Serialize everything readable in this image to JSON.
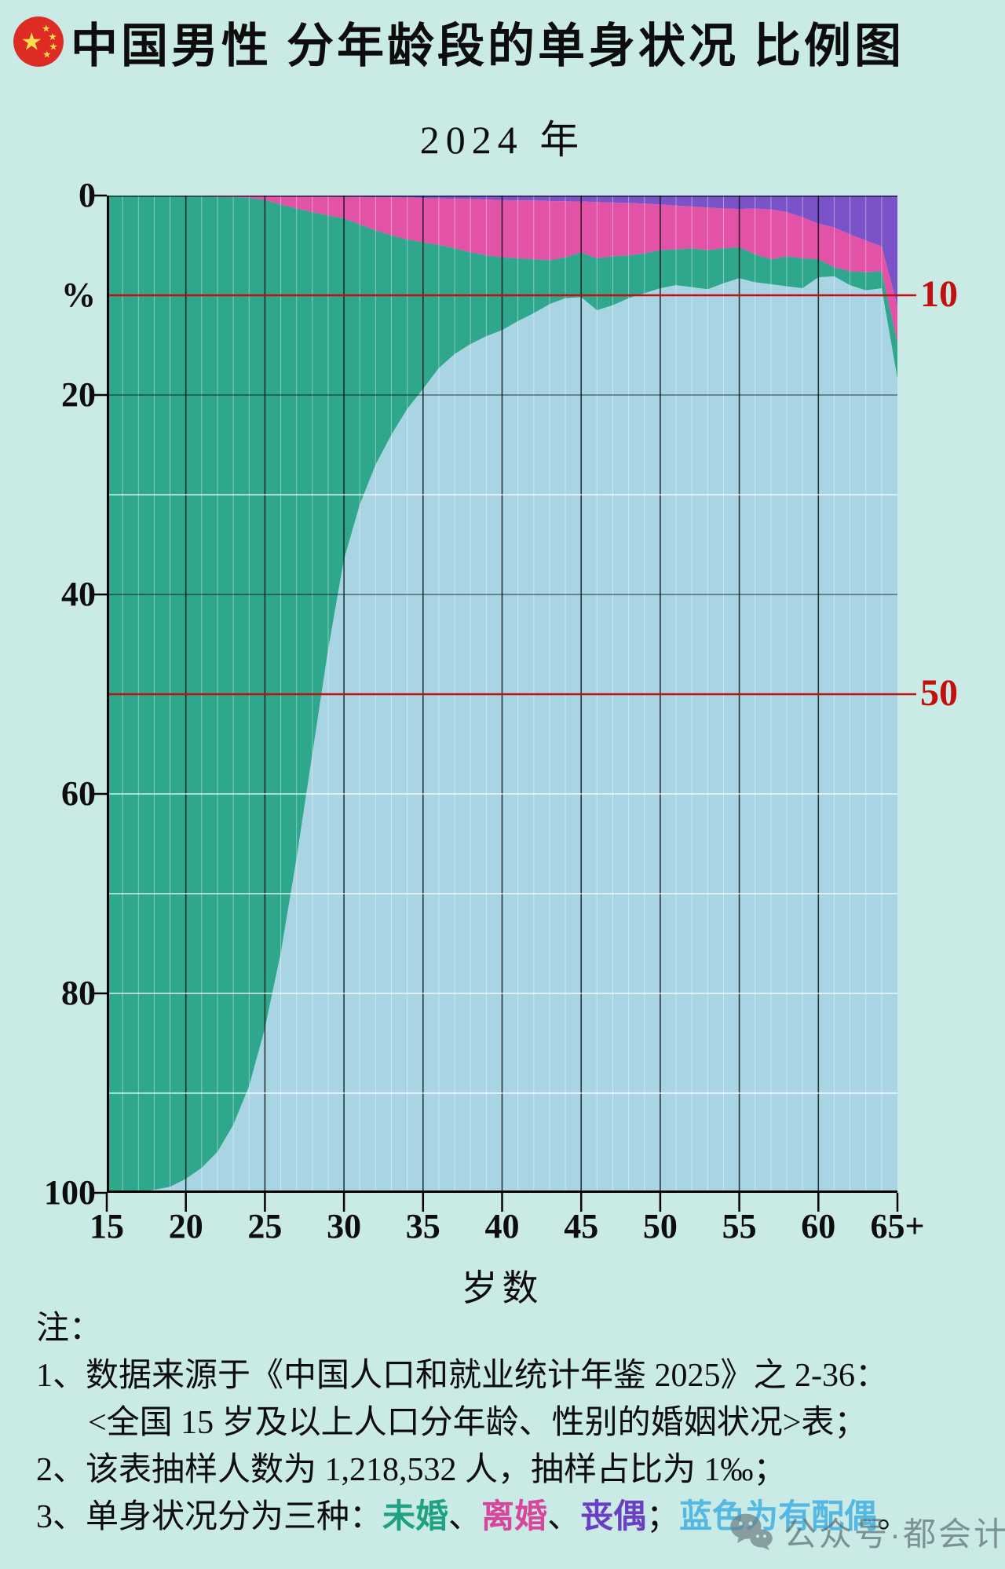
{
  "title": "中国男性 分年龄段的单身状况 比例图",
  "subtitle": "2024 年",
  "flag_icon": "china-flag-icon",
  "chart_data": {
    "type": "area",
    "stacked": true,
    "title": "中国男性 分年龄段的单身状况 比例图 2024 年",
    "xlabel": "岁数",
    "ylabel": "%",
    "ylim": [
      0,
      100
    ],
    "y_axis_inverted": true,
    "grid": true,
    "stack_order_top_to_bottom": [
      "丧偶",
      "离婚",
      "未婚",
      "有配偶"
    ],
    "x": [
      "15",
      "16",
      "17",
      "18",
      "19",
      "20",
      "21",
      "22",
      "23",
      "24",
      "25",
      "26",
      "27",
      "28",
      "29",
      "30",
      "31",
      "32",
      "33",
      "34",
      "35",
      "36",
      "37",
      "38",
      "39",
      "40",
      "41",
      "42",
      "43",
      "44",
      "45",
      "46",
      "47",
      "48",
      "49",
      "50",
      "51",
      "52",
      "53",
      "54",
      "55",
      "56",
      "57",
      "58",
      "59",
      "60",
      "61",
      "62",
      "63",
      "64",
      "65+"
    ],
    "series": [
      {
        "name": "丧偶",
        "key": "widowed",
        "color": "#7b53c9",
        "values": [
          0,
          0,
          0,
          0,
          0,
          0.02,
          0.02,
          0.03,
          0.03,
          0.04,
          0.05,
          0.06,
          0.07,
          0.08,
          0.1,
          0.12,
          0.14,
          0.16,
          0.18,
          0.2,
          0.25,
          0.3,
          0.32,
          0.35,
          0.4,
          0.45,
          0.48,
          0.5,
          0.55,
          0.57,
          0.6,
          0.65,
          0.7,
          0.75,
          0.8,
          0.9,
          1.0,
          1.1,
          1.2,
          1.3,
          1.35,
          1.3,
          1.4,
          1.65,
          2.2,
          2.8,
          3.2,
          3.9,
          4.5,
          5.1,
          11.1
        ]
      },
      {
        "name": "离婚",
        "key": "divorced",
        "color": "#e252a6",
        "values": [
          0,
          0,
          0,
          0,
          0.02,
          0.03,
          0.04,
          0.07,
          0.12,
          0.2,
          0.4,
          0.84,
          1.23,
          1.57,
          1.9,
          2.18,
          2.76,
          3.34,
          3.82,
          4.2,
          4.45,
          4.65,
          4.98,
          5.35,
          5.6,
          5.75,
          5.82,
          5.9,
          5.95,
          5.63,
          5.1,
          5.65,
          5.4,
          5.25,
          5.0,
          4.6,
          4.4,
          4.2,
          4.3,
          4.0,
          3.85,
          4.6,
          5.0,
          4.45,
          4.1,
          3.6,
          4.0,
          3.7,
          3.2,
          2.5,
          3.7
        ]
      },
      {
        "name": "未婚",
        "key": "unmarried",
        "color": "#2fa78c",
        "values": [
          100,
          99.95,
          99.9,
          99.7,
          99.38,
          98.55,
          97.44,
          95.8,
          93.05,
          89.06,
          83.05,
          75.1,
          65.2,
          54.35,
          43.5,
          34.2,
          28.1,
          23.5,
          20.0,
          17.0,
          14.7,
          12.35,
          10.6,
          9.2,
          8.1,
          7.3,
          6.3,
          5.4,
          4.4,
          4.1,
          4.5,
          5.2,
          4.9,
          4.3,
          4.0,
          3.8,
          3.6,
          3.9,
          3.9,
          3.5,
          3.1,
          2.8,
          2.5,
          3.0,
          3.0,
          1.8,
          0.9,
          1.4,
          1.8,
          1.7,
          3.6
        ]
      },
      {
        "name": "有配偶",
        "key": "spouse",
        "color": "#a9d4e4",
        "values": [
          0,
          0.05,
          0.1,
          0.3,
          0.6,
          1.4,
          2.5,
          4.1,
          6.8,
          10.7,
          16.5,
          24.0,
          33.5,
          44.0,
          54.5,
          63.5,
          69.0,
          73.0,
          76.0,
          78.6,
          80.6,
          82.7,
          84.1,
          85.1,
          85.9,
          86.5,
          87.4,
          88.2,
          89.1,
          89.7,
          89.8,
          88.5,
          89.0,
          89.7,
          90.2,
          90.7,
          91.0,
          90.8,
          90.6,
          91.2,
          91.7,
          91.3,
          91.1,
          90.9,
          90.7,
          91.8,
          91.9,
          91.0,
          90.5,
          90.7,
          81.6
        ]
      }
    ],
    "y_ticks_left": [
      {
        "label": "0",
        "pct": 0,
        "tick": true
      },
      {
        "label": "%",
        "pct": 10,
        "tick": false
      },
      {
        "label": "20",
        "pct": 20,
        "tick": true
      },
      {
        "label": "40",
        "pct": 40,
        "tick": true
      },
      {
        "label": "60",
        "pct": 60,
        "tick": true
      },
      {
        "label": "80",
        "pct": 80,
        "tick": true
      },
      {
        "label": "100",
        "pct": 100,
        "tick": true
      }
    ],
    "x_ticks": [
      {
        "label": "15",
        "age": 15
      },
      {
        "label": "20",
        "age": 20
      },
      {
        "label": "25",
        "age": 25
      },
      {
        "label": "30",
        "age": 30
      },
      {
        "label": "35",
        "age": 35
      },
      {
        "label": "40",
        "age": 40
      },
      {
        "label": "45",
        "age": 45
      },
      {
        "label": "50",
        "age": 50
      },
      {
        "label": "55",
        "age": 55
      },
      {
        "label": "60",
        "age": 60
      },
      {
        "label": "65+",
        "age": 65
      }
    ],
    "reference_lines": [
      {
        "label": "10",
        "pct": 10,
        "color": "#c01010"
      },
      {
        "label": "50",
        "pct": 50,
        "color": "#c01010"
      }
    ],
    "grid_lines": {
      "dark_h_pct": [
        20,
        40
      ],
      "white_h_pct": [
        30,
        60,
        70,
        80,
        90
      ]
    }
  },
  "notes": {
    "header": "注：",
    "line1": "1、数据来源于《中国人口和就业统计年鉴 2025》之 2-36：",
    "line1b": "<全国 15 岁及以上人口分年龄、性别的婚姻状况>表；",
    "line2": "2、该表抽样人数为 1,218,532 人，抽样占比为 1‰；",
    "line3": {
      "prefix": "3、单身状况分为三种：",
      "unmarried": "未婚",
      "sep1": "、",
      "divorced": "离婚",
      "sep2": "、",
      "widowed": "丧偶",
      "sep3": "；",
      "spouse": "蓝色为有配偶",
      "suffix": "。"
    }
  },
  "watermark": {
    "icon": "wechat-icon",
    "text": "公众号·都会计"
  },
  "colors": {
    "background": "#c9eae5",
    "unmarried_green": "#2fa78c",
    "divorced_pink": "#e252a6",
    "widowed_purple": "#7b53c9",
    "spouse_blue": "#a9d4e4",
    "reference_red": "#c01010"
  }
}
